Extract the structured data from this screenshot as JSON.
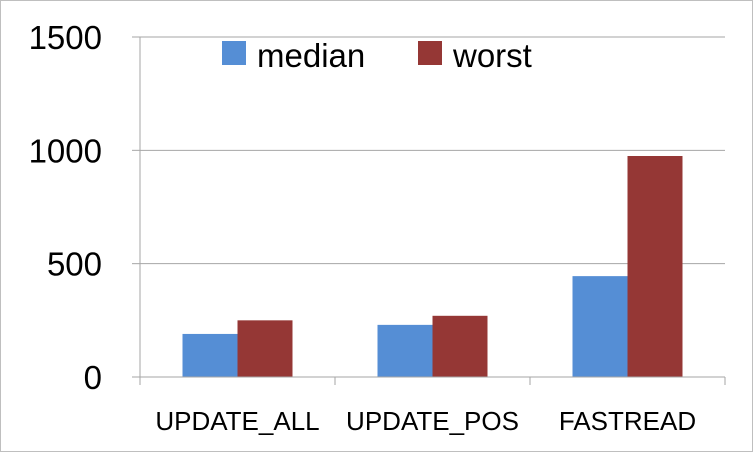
{
  "chart_data": {
    "type": "bar",
    "categories": [
      "UPDATE_ALL",
      "UPDATE_POS",
      "FASTREAD"
    ],
    "series": [
      {
        "name": "median",
        "values": [
          190,
          230,
          445
        ],
        "color": "#558ed5"
      },
      {
        "name": "worst",
        "values": [
          250,
          270,
          975
        ],
        "color": "#953735"
      }
    ],
    "ylim": [
      0,
      1500
    ],
    "yticks": [
      0,
      500,
      1000,
      1500
    ],
    "grid": true,
    "legend_position": "top",
    "gridline_color": "#a6a6a6"
  }
}
